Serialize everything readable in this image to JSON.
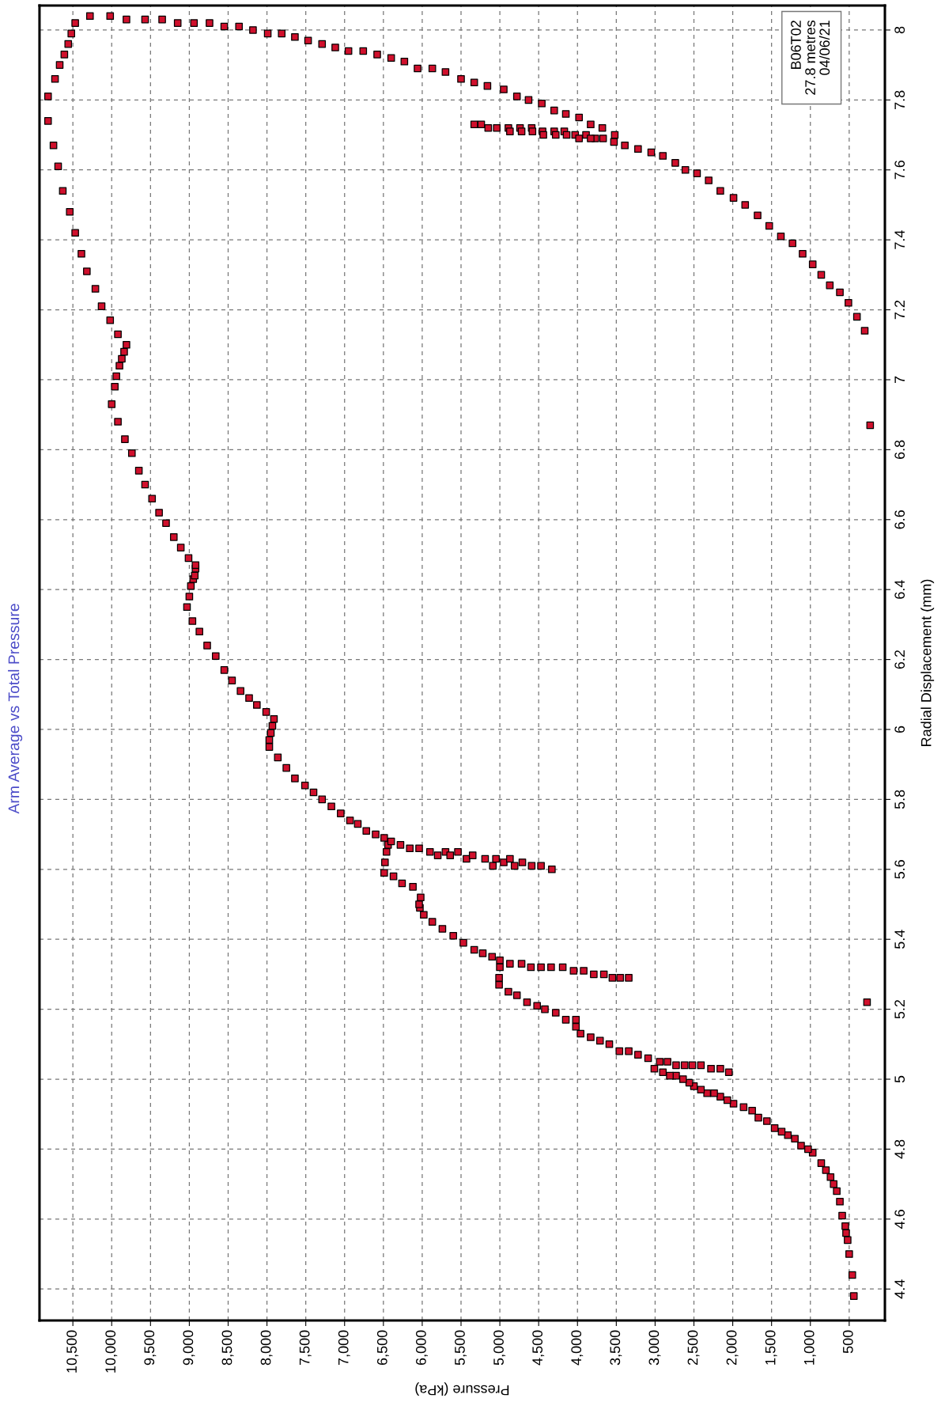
{
  "chart_data": {
    "type": "scatter",
    "title": "Arm Average vs Total Pressure",
    "xlabel": "Pressure (kPa)",
    "ylabel": "Radial Displacement (mm)",
    "annotations": [
      "B06T02\n27.8 metres\n04/06/21"
    ],
    "xlim": [
      10930,
      40
    ],
    "ylim": [
      4.31,
      8.07
    ],
    "xticks": [
      {
        "value": 10500,
        "label": "10,500"
      },
      {
        "value": 10000,
        "label": "10,000"
      },
      {
        "value": 9500,
        "label": "9,500"
      },
      {
        "value": 9000,
        "label": "9,000"
      },
      {
        "value": 8500,
        "label": "8,500"
      },
      {
        "value": 8000,
        "label": "8,000"
      },
      {
        "value": 7500,
        "label": "7,500"
      },
      {
        "value": 7000,
        "label": "7,000"
      },
      {
        "value": 6500,
        "label": "6,500"
      },
      {
        "value": 6000,
        "label": "6,000"
      },
      {
        "value": 5500,
        "label": "5,500"
      },
      {
        "value": 5000,
        "label": "5,000"
      },
      {
        "value": 4500,
        "label": "4,500"
      },
      {
        "value": 4000,
        "label": "4,000"
      },
      {
        "value": 3500,
        "label": "3,500"
      },
      {
        "value": 3000,
        "label": "3,000"
      },
      {
        "value": 2500,
        "label": "2,500"
      },
      {
        "value": 2000,
        "label": "2,000"
      },
      {
        "value": 1500,
        "label": "1,500"
      },
      {
        "value": 1000,
        "label": "1,000"
      },
      500
    ],
    "yticks": [
      4.4,
      4.6,
      4.8,
      5,
      5.2,
      5.4,
      5.6,
      5.8,
      6,
      6.2,
      6.4,
      6.6,
      6.8,
      7,
      7.2,
      7.4,
      7.6,
      7.8,
      8
    ],
    "grid": true,
    "marker": "square",
    "series": [
      {
        "color": "#d0102c",
        "x": [
          440,
          460,
          500,
          520,
          540,
          550,
          590,
          620,
          660,
          700,
          740,
          800,
          860,
          970,
          1030,
          1120,
          1200,
          1290,
          1370,
          1460,
          1560,
          1670,
          1750,
          1860,
          1990,
          2070,
          2160,
          2240,
          2330,
          2410,
          2500,
          2560,
          2640,
          2730,
          2810,
          2900,
          3010,
          2940,
          2840,
          2730,
          2620,
          2520,
          2410,
          2280,
          2160,
          2050,
          3090,
          3220,
          3340,
          3460,
          3590,
          3710,
          3830,
          3960,
          4020,
          4020,
          4150,
          4280,
          4420,
          4520,
          4650,
          4780,
          4890,
          5010,
          5010,
          5000,
          5000,
          4870,
          4720,
          4600,
          4470,
          4340,
          4190,
          4050,
          3920,
          3790,
          3660,
          3550,
          3450,
          3340,
          5100,
          5220,
          5330,
          5470,
          5600,
          5740,
          5870,
          5980,
          6030,
          6040,
          6020,
          6120,
          6260,
          6370,
          6490,
          6480,
          6460,
          6440,
          6400,
          6490,
          6280,
          6160,
          6040,
          5900,
          5800,
          5700,
          5640,
          5540,
          5430,
          5350,
          5190,
          5090,
          5050,
          4950,
          4870,
          4810,
          4710,
          4590,
          4470,
          4330,
          6600,
          6720,
          6830,
          6930,
          7050,
          7170,
          7290,
          7400,
          7510,
          7640,
          7750,
          7860,
          7970,
          7970,
          7950,
          7930,
          7910,
          8010,
          8130,
          8230,
          8340,
          8450,
          8550,
          8660,
          8770,
          8870,
          8960,
          9030,
          9000,
          8980,
          8950,
          8930,
          8920,
          8920,
          9010,
          9110,
          9200,
          9300,
          9390,
          9480,
          9570,
          9650,
          9740,
          9830,
          9920,
          10000,
          9960,
          9940,
          9900,
          9870,
          9840,
          9810,
          9920,
          10020,
          10130,
          10210,
          10320,
          10390,
          10470,
          10540,
          10630,
          10690,
          10750,
          10820,
          10820,
          10730,
          10670,
          10610,
          10560,
          10520,
          10470,
          10280,
          10020,
          9810,
          9570,
          9350,
          9150,
          8940,
          8740,
          8550,
          8360,
          8180,
          7990,
          7810,
          7640,
          7470,
          7290,
          7120,
          6950,
          6760,
          6580,
          6400,
          6230,
          6060,
          5870,
          5700,
          5500,
          5330,
          5160,
          4950,
          4780,
          4630,
          4460,
          4300,
          4150,
          3980,
          3830,
          3680,
          3520,
          3390,
          3220,
          3050,
          2900,
          2740,
          2610,
          2460,
          2310,
          2160,
          1990,
          1840,
          1680,
          1530,
          1380,
          1230,
          1100,
          970,
          860,
          750,
          620,
          510,
          400,
          300,
          230,
          5330,
          5240,
          5150,
          5040,
          4890,
          4740,
          4590,
          4450,
          4300,
          4170,
          4030,
          3890,
          3770,
          3670,
          3530,
          4870,
          4720,
          4580,
          4440,
          4280,
          4140,
          3980,
          3830,
          270
        ],
        "values": [
          4.38,
          4.44,
          4.5,
          4.54,
          4.56,
          4.58,
          4.61,
          4.65,
          4.68,
          4.7,
          4.72,
          4.74,
          4.76,
          4.79,
          4.8,
          4.81,
          4.83,
          4.84,
          4.85,
          4.86,
          4.88,
          4.89,
          4.91,
          4.92,
          4.93,
          4.94,
          4.95,
          4.96,
          4.96,
          4.97,
          4.98,
          4.99,
          5.0,
          5.01,
          5.01,
          5.02,
          5.03,
          5.05,
          5.05,
          5.04,
          5.04,
          5.04,
          5.04,
          5.03,
          5.03,
          5.02,
          5.06,
          5.07,
          5.08,
          5.08,
          5.1,
          5.11,
          5.12,
          5.13,
          5.15,
          5.17,
          5.17,
          5.19,
          5.2,
          5.21,
          5.22,
          5.24,
          5.25,
          5.27,
          5.29,
          5.32,
          5.34,
          5.33,
          5.33,
          5.32,
          5.32,
          5.32,
          5.32,
          5.31,
          5.31,
          5.3,
          5.3,
          5.29,
          5.29,
          5.29,
          5.35,
          5.36,
          5.37,
          5.39,
          5.41,
          5.43,
          5.45,
          5.47,
          5.49,
          5.5,
          5.52,
          5.55,
          5.56,
          5.58,
          5.59,
          5.62,
          5.65,
          5.67,
          5.68,
          5.69,
          5.67,
          5.66,
          5.66,
          5.65,
          5.64,
          5.65,
          5.64,
          5.65,
          5.63,
          5.64,
          5.63,
          5.61,
          5.63,
          5.62,
          5.63,
          5.61,
          5.62,
          5.61,
          5.61,
          5.6,
          5.7,
          5.71,
          5.73,
          5.74,
          5.76,
          5.78,
          5.8,
          5.82,
          5.84,
          5.86,
          5.89,
          5.92,
          5.95,
          5.97,
          5.99,
          6.01,
          6.03,
          6.05,
          6.07,
          6.09,
          6.11,
          6.14,
          6.17,
          6.21,
          6.24,
          6.28,
          6.31,
          6.35,
          6.38,
          6.41,
          6.43,
          6.44,
          6.46,
          6.47,
          6.49,
          6.52,
          6.55,
          6.59,
          6.62,
          6.66,
          6.7,
          6.74,
          6.79,
          6.83,
          6.88,
          6.93,
          6.98,
          7.01,
          7.04,
          7.06,
          7.08,
          7.1,
          7.13,
          7.17,
          7.21,
          7.26,
          7.31,
          7.36,
          7.42,
          7.48,
          7.54,
          7.61,
          7.67,
          7.74,
          7.81,
          7.86,
          7.9,
          7.93,
          7.96,
          7.99,
          8.02,
          8.04,
          8.04,
          8.03,
          8.03,
          8.03,
          8.02,
          8.02,
          8.02,
          8.01,
          8.01,
          8.0,
          7.99,
          7.99,
          7.98,
          7.97,
          7.96,
          7.95,
          7.94,
          7.94,
          7.93,
          7.92,
          7.91,
          7.89,
          7.89,
          7.88,
          7.86,
          7.85,
          7.84,
          7.83,
          7.81,
          7.8,
          7.79,
          7.77,
          7.76,
          7.75,
          7.73,
          7.72,
          7.7,
          7.67,
          7.66,
          7.65,
          7.64,
          7.62,
          7.6,
          7.59,
          7.57,
          7.54,
          7.52,
          7.5,
          7.47,
          7.44,
          7.41,
          7.39,
          7.36,
          7.33,
          7.3,
          7.27,
          7.25,
          7.22,
          7.18,
          7.14,
          6.87,
          7.73,
          7.73,
          7.72,
          7.72,
          7.72,
          7.72,
          7.72,
          7.71,
          7.71,
          7.71,
          7.7,
          7.7,
          7.69,
          7.69,
          7.68,
          7.71,
          7.71,
          7.71,
          7.7,
          7.7,
          7.7,
          7.69,
          7.69,
          5.22
        ]
      }
    ]
  }
}
